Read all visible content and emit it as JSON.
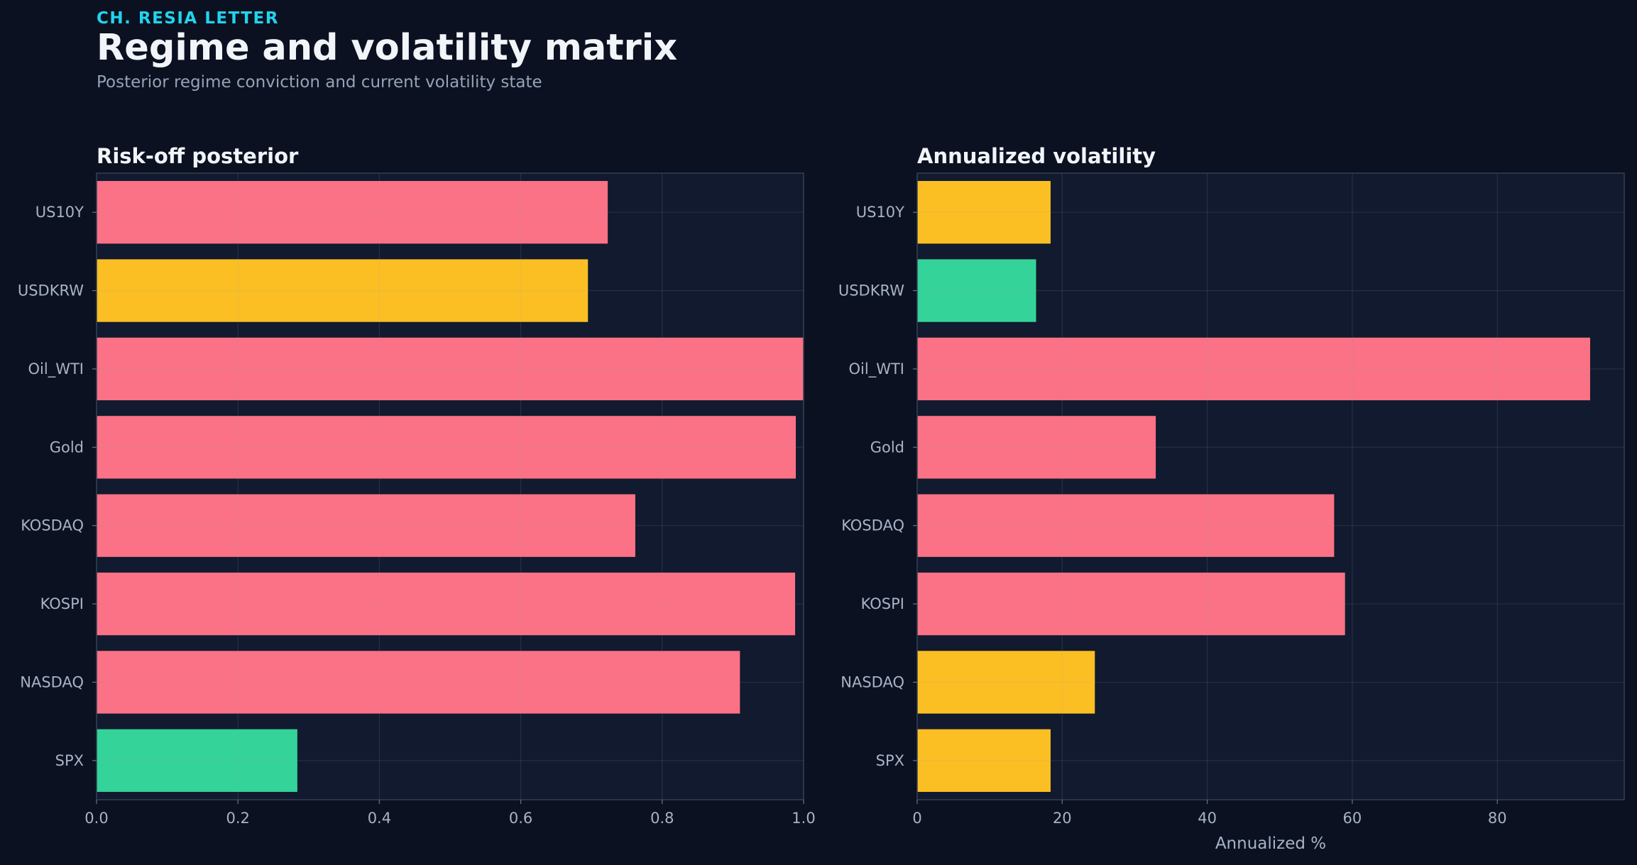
{
  "header": {
    "kicker": "CH. RESIA LETTER",
    "title": "Regime and volatility matrix",
    "subtitle": "Posterior regime conviction and current volatility state"
  },
  "colors": {
    "background": "#0b1120",
    "panel": "#111a2e",
    "risk_off": "#fb7185",
    "neutral": "#fbbf24",
    "risk_on": "#34d399"
  },
  "chart_data": [
    {
      "type": "bar",
      "orientation": "horizontal",
      "title": "Risk-off posterior",
      "xlabel": "",
      "categories": [
        "US10Y",
        "USDKRW",
        "Oil_WTI",
        "Gold",
        "KOSDAQ",
        "KOSPI",
        "NASDAQ",
        "SPX"
      ],
      "values": [
        0.723,
        0.695,
        1.0,
        0.989,
        0.762,
        0.988,
        0.91,
        0.284
      ],
      "bar_colors": [
        "#fb7185",
        "#fbbf24",
        "#fb7185",
        "#fb7185",
        "#fb7185",
        "#fb7185",
        "#fb7185",
        "#34d399"
      ],
      "xlim": [
        0,
        1.0
      ],
      "xticks": [
        0.0,
        0.2,
        0.4,
        0.6,
        0.8,
        1.0
      ],
      "xtick_labels": [
        "0.0",
        "0.2",
        "0.4",
        "0.6",
        "0.8",
        "1.0"
      ],
      "grid": true
    },
    {
      "type": "bar",
      "orientation": "horizontal",
      "title": "Annualized volatility",
      "xlabel": "Annualized %",
      "categories": [
        "US10Y",
        "USDKRW",
        "Oil_WTI",
        "Gold",
        "KOSDAQ",
        "KOSPI",
        "NASDAQ",
        "SPX"
      ],
      "values": [
        18.4,
        16.4,
        92.8,
        32.9,
        57.5,
        59.0,
        24.5,
        18.4
      ],
      "bar_colors": [
        "#fbbf24",
        "#34d399",
        "#fb7185",
        "#fb7185",
        "#fb7185",
        "#fb7185",
        "#fbbf24",
        "#fbbf24"
      ],
      "xlim": [
        0,
        97.5
      ],
      "xticks": [
        0,
        20,
        40,
        60,
        80
      ],
      "xtick_labels": [
        "0",
        "20",
        "40",
        "60",
        "80"
      ],
      "grid": true
    }
  ]
}
